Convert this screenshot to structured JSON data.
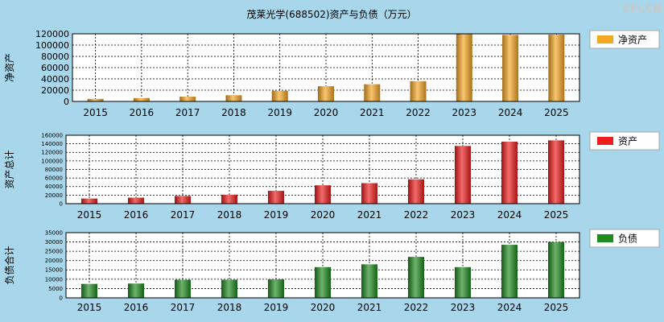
{
  "page_title": "茂莱光学(688502)资产与负债（万元）",
  "watermark": "CFi.CN",
  "chart_data": [
    {
      "type": "bar",
      "ylabel": "净资产",
      "legend": "净资产",
      "color": "#f5a623",
      "categories": [
        "2015",
        "2016",
        "2017",
        "2018",
        "2019",
        "2020",
        "2021",
        "2022",
        "2023",
        "2024",
        "2025"
      ],
      "values": [
        4500,
        6000,
        8500,
        11000,
        19000,
        27000,
        30500,
        36000,
        120000,
        118000,
        118500
      ],
      "ylim": [
        0,
        120000
      ],
      "yticks": [
        0,
        20000,
        40000,
        60000,
        80000,
        100000,
        120000
      ]
    },
    {
      "type": "bar",
      "ylabel": "资产总计",
      "legend": "资产",
      "color": "#ee1c1c",
      "categories": [
        "2015",
        "2016",
        "2017",
        "2018",
        "2019",
        "2020",
        "2021",
        "2022",
        "2023",
        "2024",
        "2025"
      ],
      "values": [
        12000,
        14000,
        18000,
        21000,
        30000,
        43000,
        48000,
        57000,
        135000,
        145000,
        148000
      ],
      "ylim": [
        0,
        160000
      ],
      "yticks": [
        0,
        20000,
        40000,
        60000,
        80000,
        100000,
        120000,
        140000,
        160000
      ]
    },
    {
      "type": "bar",
      "ylabel": "负债合计",
      "legend": "负债",
      "color": "#1e8a1e",
      "categories": [
        "2015",
        "2016",
        "2017",
        "2018",
        "2019",
        "2020",
        "2021",
        "2022",
        "2023",
        "2024",
        "2025"
      ],
      "values": [
        7500,
        7700,
        9700,
        9700,
        9900,
        16500,
        18000,
        22000,
        16500,
        28500,
        30000
      ],
      "ylim": [
        0,
        35000
      ],
      "yticks": [
        0,
        5000,
        10000,
        15000,
        20000,
        25000,
        30000,
        35000
      ]
    }
  ]
}
